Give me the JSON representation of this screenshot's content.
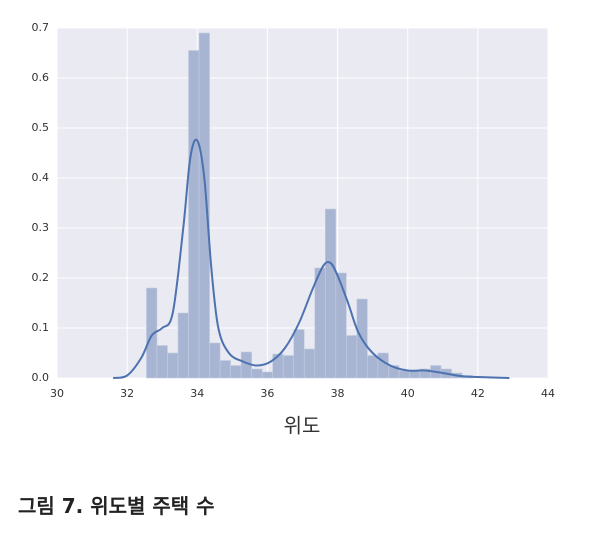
{
  "chart_data": {
    "type": "histogram",
    "xlabel": "위도",
    "bins": [
      32.55,
      32.85,
      33.15,
      33.45,
      33.75,
      34.05,
      34.35,
      34.65,
      34.95,
      35.25,
      35.55,
      35.85,
      36.15,
      36.45,
      36.75,
      37.05,
      37.35,
      37.65,
      37.95,
      38.25,
      38.55,
      38.85,
      39.15,
      39.45,
      39.75,
      40.05,
      40.35,
      40.65,
      40.95,
      41.25,
      41.55,
      41.85
    ],
    "values": [
      0.18,
      0.065,
      0.05,
      0.13,
      0.655,
      0.69,
      0.07,
      0.035,
      0.025,
      0.052,
      0.018,
      0.012,
      0.048,
      0.045,
      0.097,
      0.058,
      0.22,
      0.338,
      0.21,
      0.085,
      0.158,
      0.045,
      0.05,
      0.025,
      0.015,
      0.015,
      0.018,
      0.025,
      0.018,
      0.01,
      0.005
    ],
    "color": "#a7b5d3",
    "kde": {
      "color": "#4c72b0",
      "x": [
        31.6,
        32.0,
        32.4,
        32.7,
        33.0,
        33.3,
        33.6,
        33.8,
        34.0,
        34.2,
        34.4,
        34.6,
        34.9,
        35.3,
        35.7,
        36.1,
        36.5,
        36.9,
        37.3,
        37.6,
        37.8,
        38.0,
        38.3,
        38.6,
        39.0,
        39.5,
        40.0,
        40.5,
        41.0,
        41.5,
        42.0,
        42.9
      ],
      "values": [
        0,
        0.005,
        0.04,
        0.085,
        0.1,
        0.13,
        0.3,
        0.44,
        0.475,
        0.4,
        0.22,
        0.1,
        0.05,
        0.033,
        0.025,
        0.033,
        0.06,
        0.11,
        0.18,
        0.225,
        0.23,
        0.205,
        0.15,
        0.09,
        0.05,
        0.025,
        0.015,
        0.015,
        0.01,
        0.004,
        0.002,
        0
      ]
    },
    "xlim": [
      30,
      44
    ],
    "xticks": [
      30,
      32,
      34,
      36,
      38,
      40,
      42,
      44
    ],
    "ylim": [
      0,
      0.7
    ],
    "yticks": [
      {
        "value": 0,
        "label": "0.0"
      },
      0.1,
      0.2,
      0.3,
      0.4,
      0.5,
      0.6,
      0.7
    ],
    "grid": true
  },
  "caption": "그림 7. 위도별 주택 수"
}
